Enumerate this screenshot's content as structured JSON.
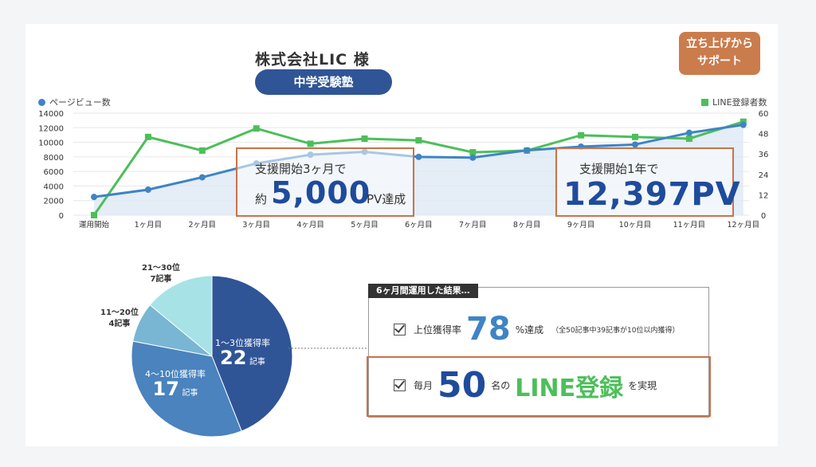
{
  "client_name": "株式会社LIC 様",
  "category_pill": "中学受験塾",
  "badge": {
    "line1": "立ち上げから",
    "line2": "サポート"
  },
  "legend": {
    "left": "ページビュー数",
    "right": "LINE登録者数"
  },
  "callouts": {
    "c1_line1": "支援開始3ヶ月で",
    "c1_prefix": "約",
    "c1_value": "5,000",
    "c1_suffix": "PV達成",
    "c2_line1": "支援開始1年で",
    "c2_value": "12,397PV"
  },
  "colors": {
    "pv": "#3f84c4",
    "line": "#4cbf5a",
    "accent": "#c8734a",
    "navy": "#2f5597"
  },
  "chart_data": [
    {
      "type": "line",
      "categories": [
        "運用開始",
        "1ヶ月目",
        "2ヶ月目",
        "3ヶ月目",
        "4ヶ月目",
        "5ヶ月目",
        "6ヶ月目",
        "7ヶ月目",
        "8ヶ月目",
        "9ヶ月目",
        "10ヶ月目",
        "11ヶ月目",
        "12ヶ月目"
      ],
      "series": [
        {
          "name": "ページビュー数",
          "axis": "left",
          "values": [
            2500,
            3500,
            5200,
            7100,
            8300,
            8700,
            8000,
            7900,
            8900,
            9400,
            9700,
            11300,
            12397
          ]
        },
        {
          "name": "LINE登録者数",
          "axis": "right",
          "values": [
            0,
            46,
            38,
            51,
            42,
            45,
            44,
            37,
            38,
            47,
            46,
            45,
            55
          ]
        }
      ],
      "y_left": {
        "min": 0,
        "max": 14000,
        "ticks": [
          0,
          2000,
          4000,
          6000,
          8000,
          10000,
          12000,
          14000
        ]
      },
      "y_right": {
        "min": 0,
        "max": 60,
        "ticks": [
          0,
          12,
          24,
          36,
          48,
          60
        ]
      }
    },
    {
      "type": "pie",
      "slices": [
        {
          "label": "1〜3位獲得率",
          "value": 22,
          "unit": "記事",
          "color": "#2f5597"
        },
        {
          "label": "4〜10位獲得率",
          "value": 17,
          "unit": "記事",
          "color": "#4a83bd"
        },
        {
          "label": "11〜20位",
          "value": 4,
          "unit": "4記事",
          "color": "#79b6d4"
        },
        {
          "label": "21〜30位",
          "value": 7,
          "unit": "7記事",
          "color": "#a6e2e6"
        }
      ]
    }
  ],
  "results": {
    "header": "6ヶ月間運用した結果…",
    "r1_label": "上位獲得率",
    "r1_value": "78",
    "r1_suffix": "%達成",
    "r1_note": "（全50記事中39記事が10位以内獲得）",
    "r2_prefix": "毎月",
    "r2_value": "50",
    "r2_mid": "名の",
    "r2_line": "LINE登録",
    "r2_suffix": "を実現"
  }
}
